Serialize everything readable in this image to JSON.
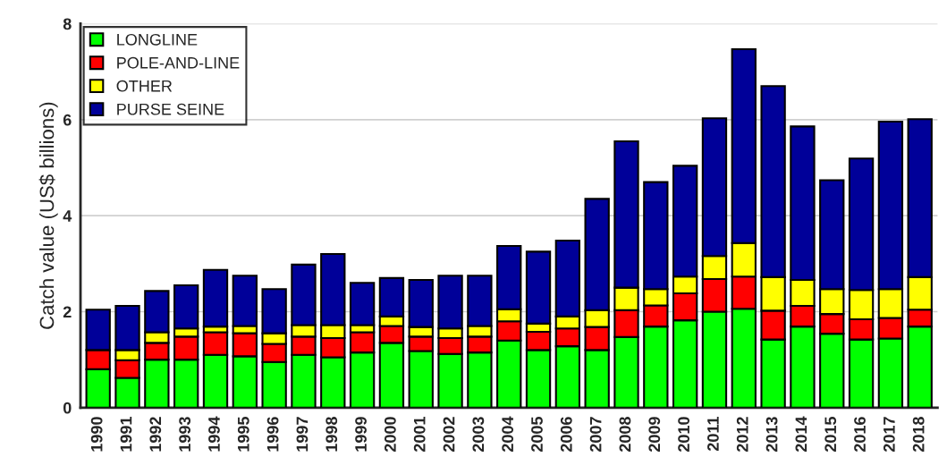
{
  "chart_data": {
    "type": "bar",
    "stacked": true,
    "ylabel": "Catch value (US$ billions)",
    "categories": [
      "1990",
      "1991",
      "1992",
      "1993",
      "1994",
      "1995",
      "1996",
      "1997",
      "1998",
      "1999",
      "2000",
      "2001",
      "2002",
      "2003",
      "2004",
      "2005",
      "2006",
      "2007",
      "2008",
      "2009",
      "2010",
      "2011",
      "2012",
      "2013",
      "2014",
      "2015",
      "2016",
      "2017",
      "2018"
    ],
    "series": [
      {
        "name": "LONGLINE",
        "color": "#00ff00",
        "values": [
          0.8,
          0.62,
          1.0,
          1.0,
          1.1,
          1.07,
          0.95,
          1.1,
          1.05,
          1.15,
          1.35,
          1.18,
          1.12,
          1.15,
          1.4,
          1.2,
          1.28,
          1.2,
          1.47,
          1.69,
          1.82,
          2.0,
          2.06,
          1.42,
          1.69,
          1.54,
          1.42,
          1.44,
          1.69
        ]
      },
      {
        "name": "POLE-AND-LINE",
        "color": "#ff0000",
        "values": [
          0.4,
          0.37,
          0.35,
          0.48,
          0.47,
          0.48,
          0.38,
          0.38,
          0.4,
          0.42,
          0.35,
          0.3,
          0.33,
          0.33,
          0.4,
          0.38,
          0.37,
          0.48,
          0.56,
          0.44,
          0.56,
          0.68,
          0.67,
          0.6,
          0.43,
          0.41,
          0.42,
          0.43,
          0.35
        ]
      },
      {
        "name": "OTHER",
        "color": "#ffff00",
        "values": [
          null,
          0.21,
          0.22,
          0.17,
          0.12,
          0.15,
          0.22,
          0.24,
          0.27,
          0.15,
          0.2,
          0.2,
          0.2,
          0.22,
          0.25,
          0.17,
          0.25,
          0.35,
          0.47,
          0.34,
          0.35,
          0.48,
          0.7,
          0.7,
          0.54,
          0.52,
          0.61,
          0.6,
          0.68
        ]
      },
      {
        "name": "PURSE SEINE",
        "color": "#000099",
        "values": [
          0.84,
          0.92,
          0.86,
          0.9,
          1.18,
          1.05,
          0.92,
          1.26,
          1.48,
          0.88,
          0.8,
          0.98,
          1.1,
          1.05,
          1.32,
          1.5,
          1.58,
          2.32,
          3.05,
          2.23,
          2.31,
          2.87,
          4.04,
          3.98,
          3.2,
          2.27,
          2.74,
          3.49,
          3.29
        ]
      }
    ],
    "ylim": [
      0,
      8
    ],
    "yticks": [
      0,
      2,
      4,
      6,
      8
    ],
    "grid": "y",
    "legend": "top left"
  }
}
